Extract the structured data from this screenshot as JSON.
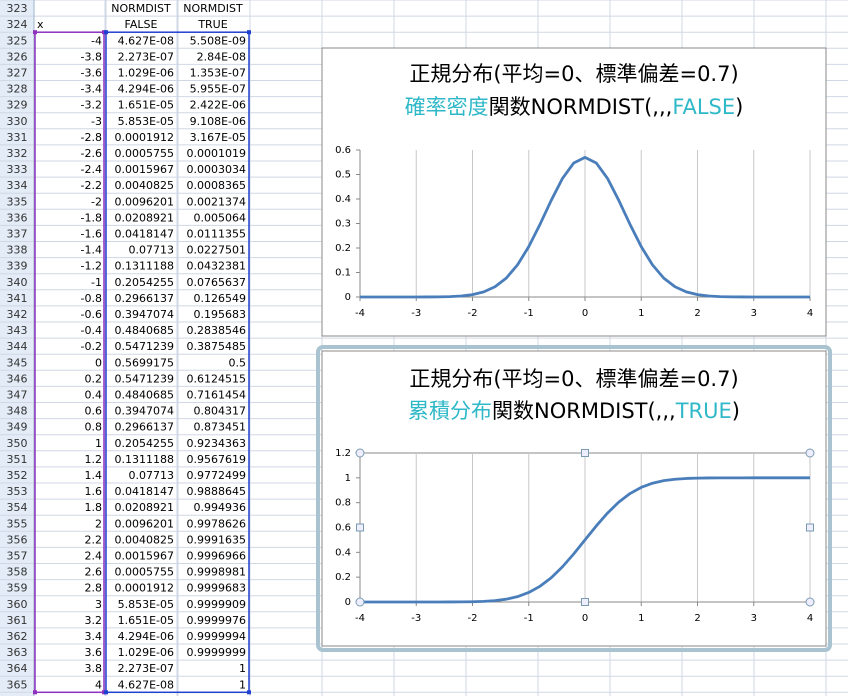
{
  "table": {
    "rows": [
      {
        "row": "323",
        "C": "NORMDIST",
        "D": "NORMDIST"
      },
      {
        "row": "324",
        "B": "x",
        "C": "FALSE",
        "D": "TRUE"
      },
      {
        "row": "325",
        "B": "-4",
        "C": "4.627E-08",
        "D": "5.508E-09"
      },
      {
        "row": "326",
        "B": "-3.8",
        "C": "2.273E-07",
        "D": "2.84E-08"
      },
      {
        "row": "327",
        "B": "-3.6",
        "C": "1.029E-06",
        "D": "1.353E-07"
      },
      {
        "row": "328",
        "B": "-3.4",
        "C": "4.294E-06",
        "D": "5.955E-07"
      },
      {
        "row": "329",
        "B": "-3.2",
        "C": "1.651E-05",
        "D": "2.422E-06"
      },
      {
        "row": "330",
        "B": "-3",
        "C": "5.853E-05",
        "D": "9.108E-06"
      },
      {
        "row": "331",
        "B": "-2.8",
        "C": "0.0001912",
        "D": "3.167E-05"
      },
      {
        "row": "332",
        "B": "-2.6",
        "C": "0.0005755",
        "D": "0.0001019"
      },
      {
        "row": "333",
        "B": "-2.4",
        "C": "0.0015967",
        "D": "0.0003034"
      },
      {
        "row": "334",
        "B": "-2.2",
        "C": "0.0040825",
        "D": "0.0008365"
      },
      {
        "row": "335",
        "B": "-2",
        "C": "0.0096201",
        "D": "0.0021374"
      },
      {
        "row": "336",
        "B": "-1.8",
        "C": "0.0208921",
        "D": "0.005064"
      },
      {
        "row": "337",
        "B": "-1.6",
        "C": "0.0418147",
        "D": "0.0111355"
      },
      {
        "row": "338",
        "B": "-1.4",
        "C": "0.07713",
        "D": "0.0227501"
      },
      {
        "row": "339",
        "B": "-1.2",
        "C": "0.1311188",
        "D": "0.0432381"
      },
      {
        "row": "340",
        "B": "-1",
        "C": "0.2054255",
        "D": "0.0765637"
      },
      {
        "row": "341",
        "B": "-0.8",
        "C": "0.2966137",
        "D": "0.126549"
      },
      {
        "row": "342",
        "B": "-0.6",
        "C": "0.3947074",
        "D": "0.195683"
      },
      {
        "row": "343",
        "B": "-0.4",
        "C": "0.4840685",
        "D": "0.2838546"
      },
      {
        "row": "344",
        "B": "-0.2",
        "C": "0.5471239",
        "D": "0.3875485"
      },
      {
        "row": "345",
        "B": "0",
        "C": "0.5699175",
        "D": "0.5"
      },
      {
        "row": "346",
        "B": "0.2",
        "C": "0.5471239",
        "D": "0.6124515"
      },
      {
        "row": "347",
        "B": "0.4",
        "C": "0.4840685",
        "D": "0.7161454"
      },
      {
        "row": "348",
        "B": "0.6",
        "C": "0.3947074",
        "D": "0.804317"
      },
      {
        "row": "349",
        "B": "0.8",
        "C": "0.2966137",
        "D": "0.873451"
      },
      {
        "row": "350",
        "B": "1",
        "C": "0.2054255",
        "D": "0.9234363"
      },
      {
        "row": "351",
        "B": "1.2",
        "C": "0.1311188",
        "D": "0.9567619"
      },
      {
        "row": "352",
        "B": "1.4",
        "C": "0.07713",
        "D": "0.9772499"
      },
      {
        "row": "353",
        "B": "1.6",
        "C": "0.0418147",
        "D": "0.9888645"
      },
      {
        "row": "354",
        "B": "1.8",
        "C": "0.0208921",
        "D": "0.994936"
      },
      {
        "row": "355",
        "B": "2",
        "C": "0.0096201",
        "D": "0.9978626"
      },
      {
        "row": "356",
        "B": "2.2",
        "C": "0.0040825",
        "D": "0.9991635"
      },
      {
        "row": "357",
        "B": "2.4",
        "C": "0.0015967",
        "D": "0.9996966"
      },
      {
        "row": "358",
        "B": "2.6",
        "C": "0.0005755",
        "D": "0.9998981"
      },
      {
        "row": "359",
        "B": "2.8",
        "C": "0.0001912",
        "D": "0.9999683"
      },
      {
        "row": "360",
        "B": "3",
        "C": "5.853E-05",
        "D": "0.9999909"
      },
      {
        "row": "361",
        "B": "3.2",
        "C": "1.651E-05",
        "D": "0.9999976"
      },
      {
        "row": "362",
        "B": "3.4",
        "C": "4.294E-06",
        "D": "0.9999994"
      },
      {
        "row": "363",
        "B": "3.6",
        "C": "1.029E-06",
        "D": "0.9999999"
      },
      {
        "row": "364",
        "B": "3.8",
        "C": "2.273E-07",
        "D": "1"
      },
      {
        "row": "365",
        "B": "4",
        "C": "4.627E-08",
        "D": "1"
      }
    ]
  },
  "chart_data": [
    {
      "type": "line",
      "title": "正規分布(平均=0、標準偏差=0.7)",
      "subtitle_parts": [
        {
          "text": "確率密度",
          "color": "#2fb8c8"
        },
        {
          "text": "関数NORMDIST(,,,",
          "color": "#000000"
        },
        {
          "text": "FALSE",
          "color": "#2fb8c8"
        },
        {
          "text": ")",
          "color": "#000000"
        }
      ],
      "x": [
        -4,
        -3.8,
        -3.6,
        -3.4,
        -3.2,
        -3,
        -2.8,
        -2.6,
        -2.4,
        -2.2,
        -2,
        -1.8,
        -1.6,
        -1.4,
        -1.2,
        -1,
        -0.8,
        -0.6,
        -0.4,
        -0.2,
        0,
        0.2,
        0.4,
        0.6,
        0.8,
        1,
        1.2,
        1.4,
        1.6,
        1.8,
        2,
        2.2,
        2.4,
        2.6,
        2.8,
        3,
        3.2,
        3.4,
        3.6,
        3.8,
        4
      ],
      "values": [
        4.627e-08,
        2.273e-07,
        1.029e-06,
        4.294e-06,
        1.651e-05,
        5.853e-05,
        0.0001912,
        0.0005755,
        0.0015967,
        0.0040825,
        0.0096201,
        0.0208921,
        0.0418147,
        0.07713,
        0.1311188,
        0.2054255,
        0.2966137,
        0.3947074,
        0.4840685,
        0.5471239,
        0.5699175,
        0.5471239,
        0.4840685,
        0.3947074,
        0.2966137,
        0.2054255,
        0.1311188,
        0.07713,
        0.0418147,
        0.0208921,
        0.0096201,
        0.0040825,
        0.0015967,
        0.0005755,
        0.0001912,
        5.853e-05,
        1.651e-05,
        4.294e-06,
        1.029e-06,
        2.273e-07,
        4.627e-08
      ],
      "color": "#4a7ebb",
      "xlim": [
        -4,
        4
      ],
      "xticks": [
        -4,
        -3,
        -2,
        -1,
        0,
        1,
        2,
        3,
        4
      ],
      "ylim": [
        0,
        0.6
      ],
      "yticks": [
        0,
        0.1,
        0.2,
        0.3,
        0.4,
        0.5,
        0.6
      ],
      "x_grid": true
    },
    {
      "type": "line",
      "title": "正規分布(平均=0、標準偏差=0.7)",
      "subtitle_parts": [
        {
          "text": "累積分布",
          "color": "#2fb8c8"
        },
        {
          "text": "関数NORMDIST(,,,",
          "color": "#000000"
        },
        {
          "text": "TRUE",
          "color": "#2fb8c8"
        },
        {
          "text": ")",
          "color": "#000000"
        }
      ],
      "x": [
        -4,
        -3.8,
        -3.6,
        -3.4,
        -3.2,
        -3,
        -2.8,
        -2.6,
        -2.4,
        -2.2,
        -2,
        -1.8,
        -1.6,
        -1.4,
        -1.2,
        -1,
        -0.8,
        -0.6,
        -0.4,
        -0.2,
        0,
        0.2,
        0.4,
        0.6,
        0.8,
        1,
        1.2,
        1.4,
        1.6,
        1.8,
        2,
        2.2,
        2.4,
        2.6,
        2.8,
        3,
        3.2,
        3.4,
        3.6,
        3.8,
        4
      ],
      "values": [
        5.508e-09,
        2.84e-08,
        1.353e-07,
        5.955e-07,
        2.422e-06,
        9.108e-06,
        3.167e-05,
        0.0001019,
        0.0003034,
        0.0008365,
        0.0021374,
        0.005064,
        0.0111355,
        0.0227501,
        0.0432381,
        0.0765637,
        0.126549,
        0.195683,
        0.2838546,
        0.3875485,
        0.5,
        0.6124515,
        0.7161454,
        0.804317,
        0.873451,
        0.9234363,
        0.9567619,
        0.9772499,
        0.9888645,
        0.994936,
        0.9978626,
        0.9991635,
        0.9996966,
        0.9998981,
        0.9999683,
        0.9999909,
        0.9999976,
        0.9999994,
        0.9999999,
        1,
        1
      ],
      "color": "#4a7ebb",
      "xlim": [
        -4,
        4
      ],
      "xticks": [
        -4,
        -3,
        -2,
        -1,
        0,
        1,
        2,
        3,
        4
      ],
      "ylim": [
        0,
        1.2
      ],
      "yticks": [
        0,
        0.2,
        0.4,
        0.6,
        0.8,
        1,
        1.2
      ],
      "x_grid": true
    }
  ]
}
